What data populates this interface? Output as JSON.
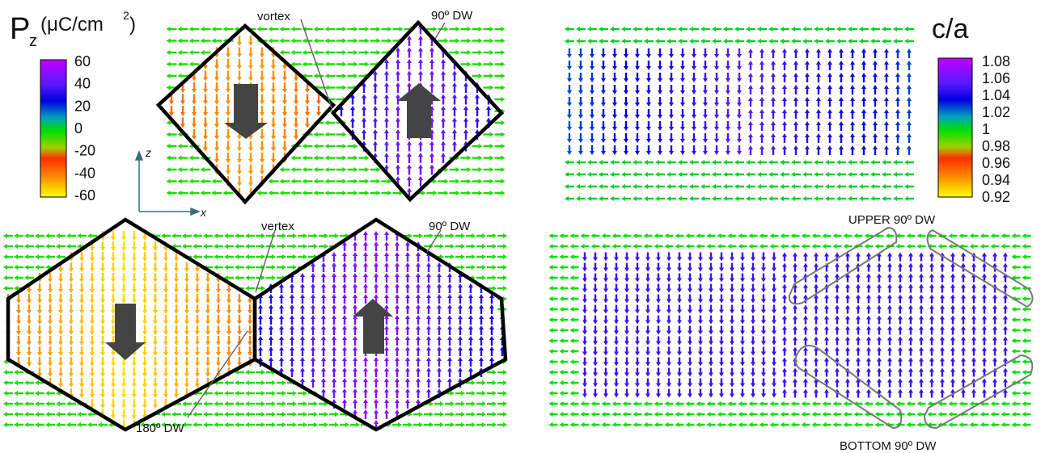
{
  "colorbar_pz": {
    "title_main": "P",
    "title_sub": "z",
    "title_unit": "(μC/cm",
    "title_sup": "2",
    "title_close": " )",
    "ticks": [
      "60",
      "40",
      "20",
      "0",
      "-20",
      "-40",
      "-60"
    ]
  },
  "colorbar_ca": {
    "title": "c/a",
    "ticks": [
      "1.08",
      "1.06",
      "1.04",
      "1.02",
      "1",
      "0.98",
      "0.96",
      "0.94",
      "0.92"
    ]
  },
  "axes": {
    "z": "z",
    "x": "x"
  },
  "annotations": {
    "vertex_top": "vortex",
    "dw90_top": "90º DW",
    "vertex_bottom": "vertex",
    "dw90_bottom": "90º DW",
    "dw180": "180º DW",
    "upper_dw": "UPPER 90º DW",
    "bottom_dw": "BOTTOM 90º DW"
  },
  "colors": {
    "domain_outline": "#000000",
    "big_arrow": "#444444",
    "wall_highlight": "#777777"
  }
}
